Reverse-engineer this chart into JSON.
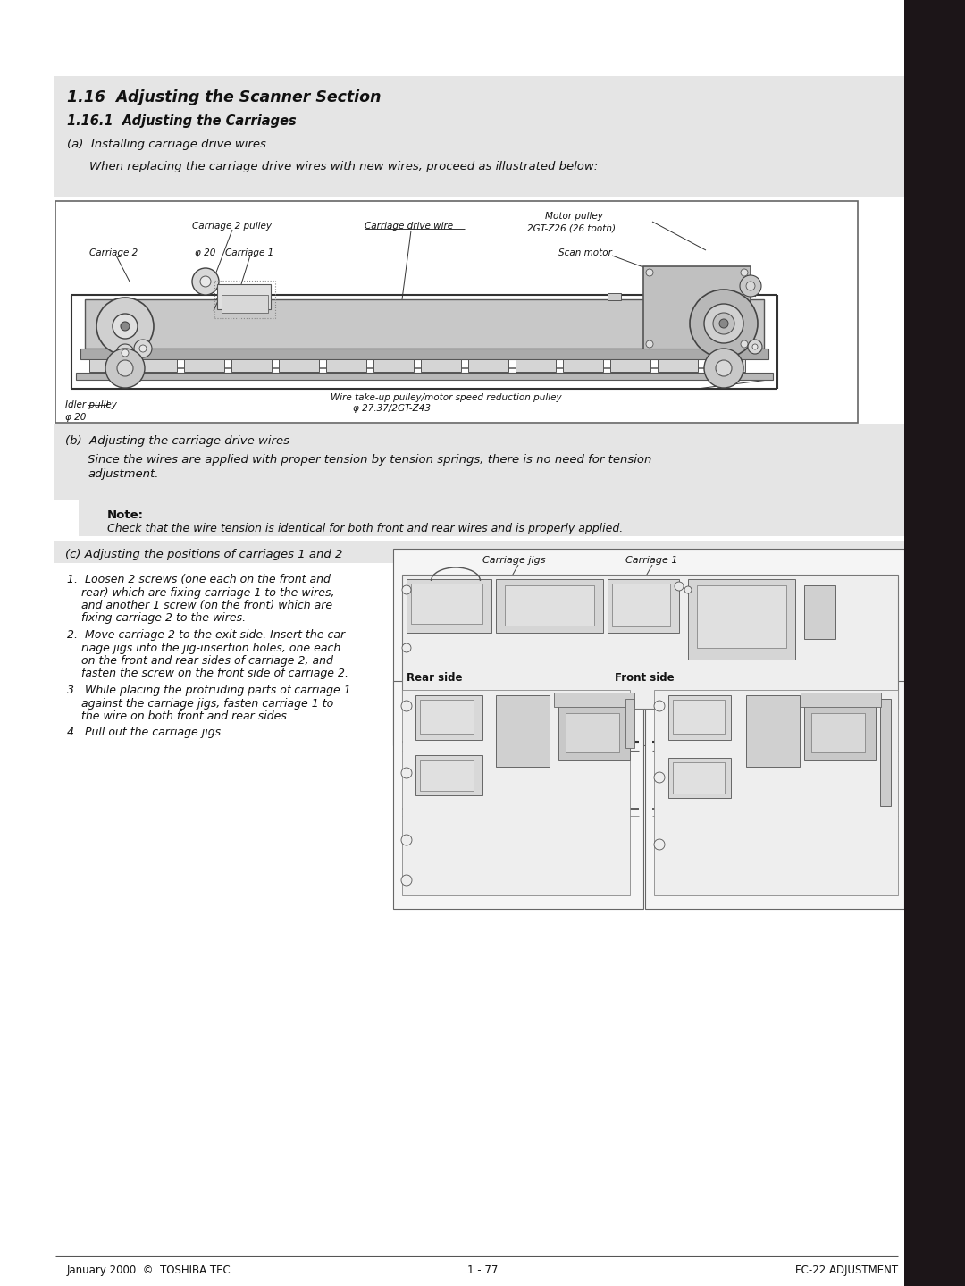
{
  "bg_color": "#ffffff",
  "gray_bg": "#e8e8e8",
  "sidebar_color": "#2a2020",
  "title_main": "1.16  Adjusting the Scanner Section",
  "title_sub": "1.16.1  Adjusting the Carriages",
  "section_a_heading": "(a)  Installing carriage drive wires",
  "section_a_note": "When replacing the carriage drive wires with new wires, proceed as illustrated below:",
  "section_b_heading": "(b)  Adjusting the carriage drive wires",
  "section_b_line1": "Since the wires are applied with proper tension by tension springs, there is no need for tension",
  "section_b_line2": "adjustment.",
  "note_label": "Note:",
  "note_text": "Check that the wire tension is identical for both front and rear wires and is properly applied.",
  "section_c_heading": "(c) Adjusting the positions of carriages 1 and 2",
  "step1_lines": [
    "1.  Loosen 2 screws (one each on the front and",
    "    rear) which are fixing carriage 1 to the wires,",
    "    and another 1 screw (on the front) which are",
    "    fixing carriage 2 to the wires."
  ],
  "step2_lines": [
    "2.  Move carriage 2 to the exit side. Insert the car-",
    "    riage jigs into the jig-insertion holes, one each",
    "    on the front and rear sides of carriage 2, and",
    "    fasten the screw on the front side of carriage 2."
  ],
  "step3_lines": [
    "3.  While placing the protruding parts of carriage 1",
    "    against the carriage jigs, fasten carriage 1 to",
    "    the wire on both front and rear sides."
  ],
  "step4": "4.  Pull out the carriage jigs.",
  "footer_left": "January 2000  ©  TOSHIBA TEC",
  "footer_center": "1 - 77",
  "footer_right": "FC-22 ADJUSTMENT",
  "d1_labels": {
    "motor_pulley": "Motor pulley",
    "motor_pulley2": "2GT-Z26 (26 tooth)",
    "carriage2pulley": "Carriage 2 pulley",
    "carriage_drive_wire": "Carriage drive wire",
    "carriage2": "Carriage 2",
    "phi20": "φ 20",
    "carriage1": "Carriage 1",
    "scan_motor": "Scan motor",
    "idler_pulley": "Idler pulley",
    "phi20b": "φ 20",
    "wire_takeup": "Wire take-up pulley/motor speed reduction pulley",
    "phi_takeup": "φ 27.37/2GT-Z43"
  },
  "d2_labels": {
    "carriage_jigs": "Carriage jigs",
    "carriage1": "Carriage 1",
    "rear_side": "Rear side",
    "front_side": "Front side"
  }
}
